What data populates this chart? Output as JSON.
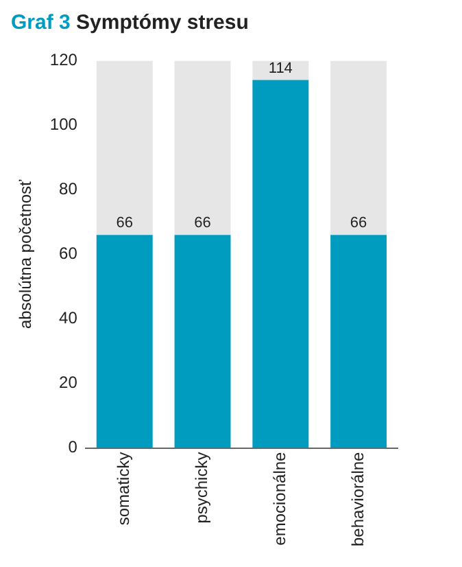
{
  "chart_data": {
    "type": "bar",
    "title": "Graf 3 Symptómy stresu",
    "ylabel": "absolútna početnosť",
    "categories": [
      "somaticky",
      "psychicky",
      "emocionálne",
      "behaviorálne"
    ],
    "series": [
      {
        "color": "#009cc0",
        "values": [
          66,
          66,
          114,
          66
        ],
        "value_labels": [
          "66",
          "66",
          "114",
          "66"
        ]
      },
      {
        "color": "#e6e6e6",
        "values": [
          54,
          54,
          6,
          54
        ]
      }
    ],
    "stacked": true,
    "ylim": [
      0,
      120
    ],
    "yticks": [
      0,
      20,
      40,
      60,
      80,
      100,
      120
    ],
    "grid": false,
    "legend": false
  }
}
